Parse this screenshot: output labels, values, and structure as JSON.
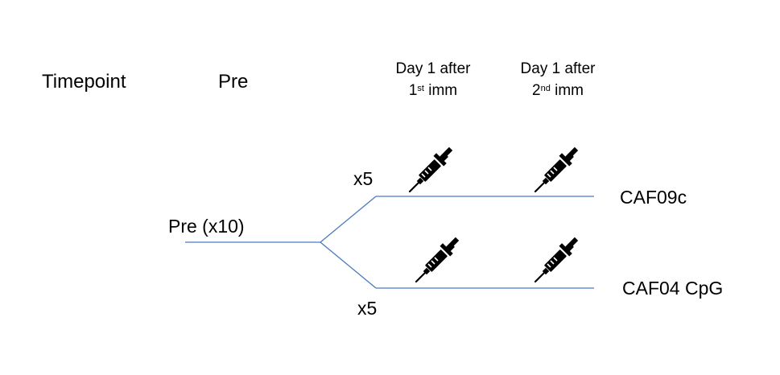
{
  "header": {
    "timepoint_label": "Timepoint",
    "pre_label": "Pre",
    "day1_first": {
      "line1": "Day 1 after",
      "num": "1",
      "sup": "st",
      "rest": " imm"
    },
    "day1_second": {
      "line1": "Day 1 after",
      "num": "2",
      "sup": "nd",
      "rest": " imm"
    }
  },
  "diagram": {
    "root_label": "Pre (x10)",
    "branches": [
      {
        "count_label": "x5",
        "group_label": "CAF09c"
      },
      {
        "count_label": "x5",
        "group_label": "CAF04 CpG"
      }
    ]
  },
  "icons": {
    "syringe": "syringe-icon"
  },
  "colors": {
    "line": "#4a7bbf",
    "text": "#000000"
  }
}
